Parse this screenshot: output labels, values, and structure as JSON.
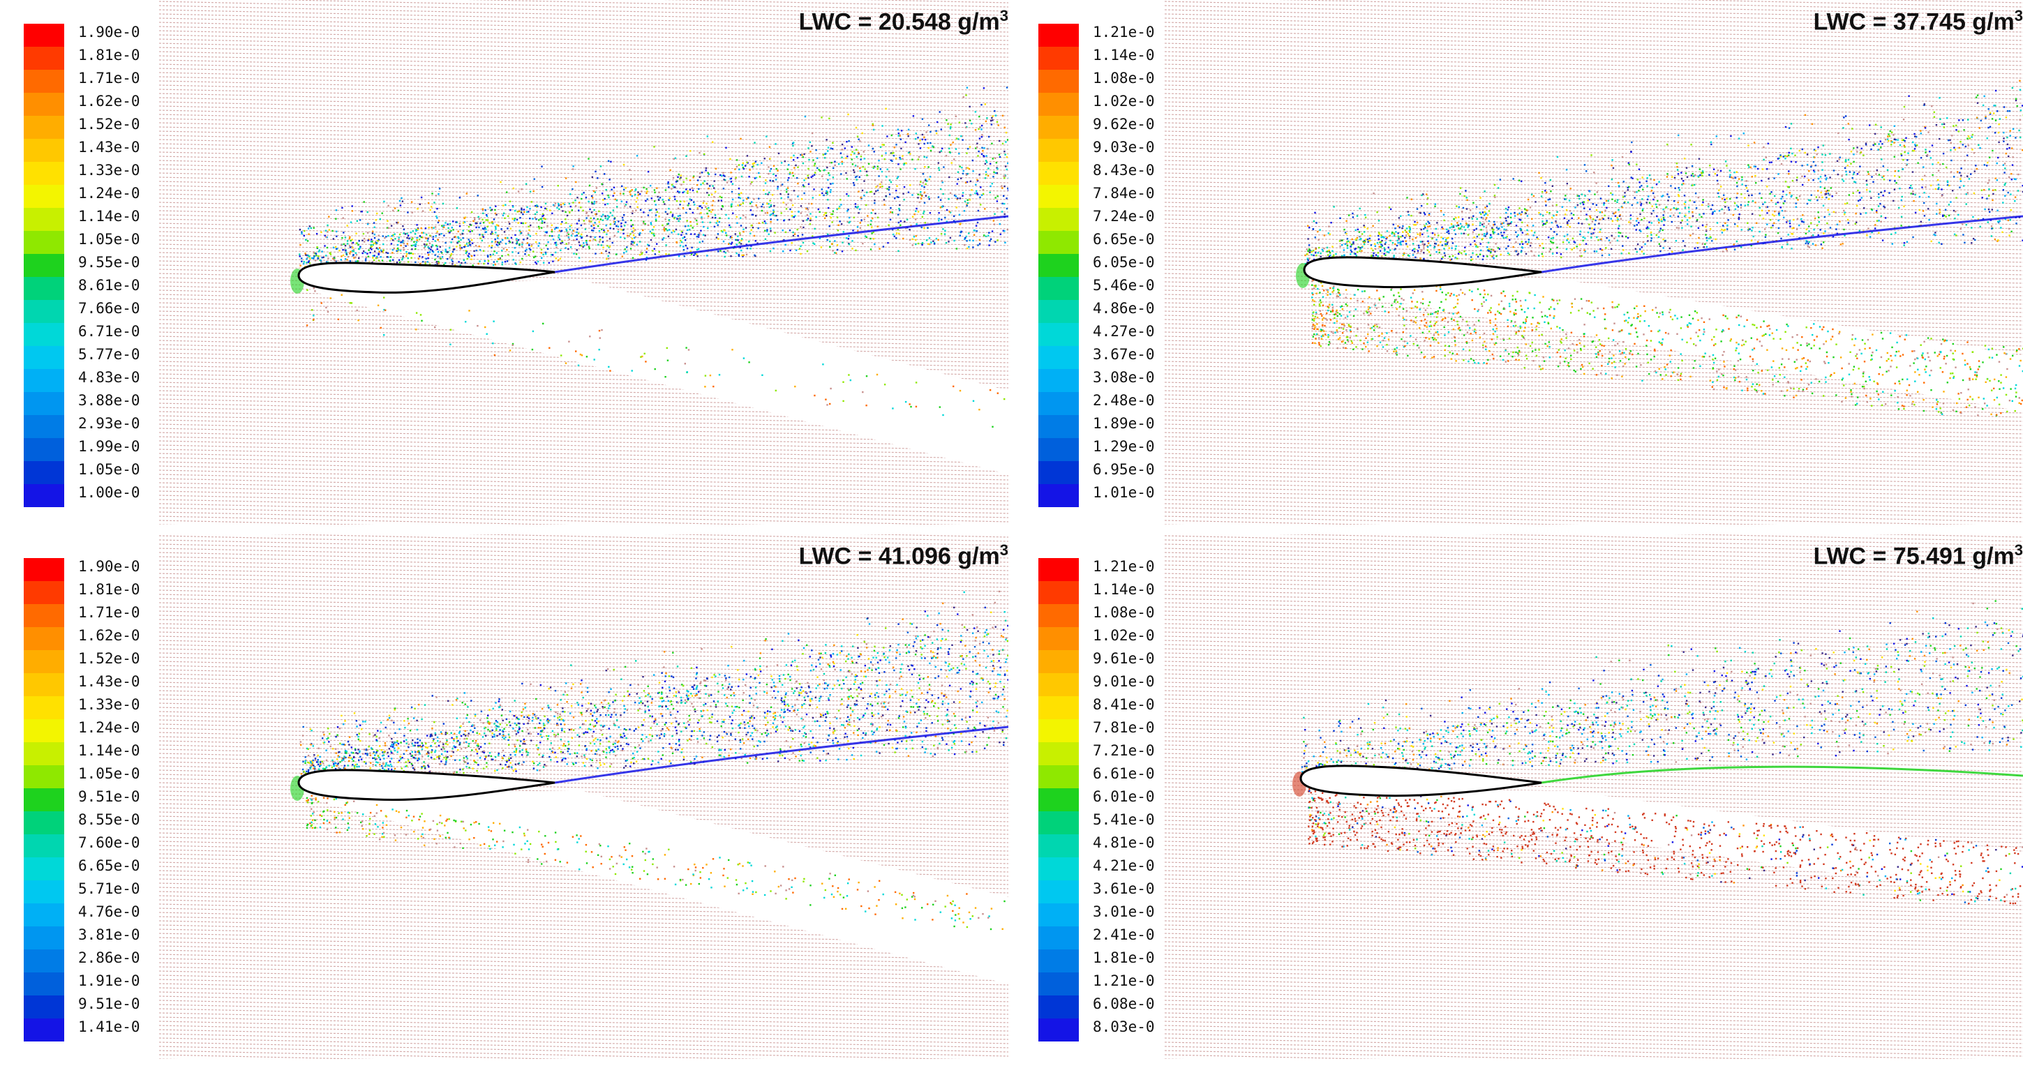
{
  "panels": [
    {
      "lwc_label": "LWC = 20.548 g/m",
      "lwc_unit_sup": "3",
      "colorbar_labels": [
        "1.90e-0",
        "1.81e-0",
        "1.71e-0",
        "1.62e-0",
        "1.52e-0",
        "1.43e-0",
        "1.33e-0",
        "1.24e-0",
        "1.14e-0",
        "1.05e-0",
        "9.55e-0",
        "8.61e-0",
        "7.66e-0",
        "6.71e-0",
        "5.77e-0",
        "4.83e-0",
        "3.88e-0",
        "2.93e-0",
        "1.99e-0",
        "1.05e-0",
        "1.00e-0"
      ]
    },
    {
      "lwc_label": "LWC = 37.745 g/m",
      "lwc_unit_sup": "3",
      "colorbar_labels": [
        "1.21e-0",
        "1.14e-0",
        "1.08e-0",
        "1.02e-0",
        "9.62e-0",
        "9.03e-0",
        "8.43e-0",
        "7.84e-0",
        "7.24e-0",
        "6.65e-0",
        "6.05e-0",
        "5.46e-0",
        "4.86e-0",
        "4.27e-0",
        "3.67e-0",
        "3.08e-0",
        "2.48e-0",
        "1.89e-0",
        "1.29e-0",
        "6.95e-0",
        "1.01e-0"
      ]
    },
    {
      "lwc_label": "LWC = 41.096 g/m",
      "lwc_unit_sup": "3",
      "colorbar_labels": [
        "1.90e-0",
        "1.81e-0",
        "1.71e-0",
        "1.62e-0",
        "1.52e-0",
        "1.43e-0",
        "1.33e-0",
        "1.24e-0",
        "1.14e-0",
        "1.05e-0",
        "9.51e-0",
        "8.55e-0",
        "7.60e-0",
        "6.65e-0",
        "5.71e-0",
        "4.76e-0",
        "3.81e-0",
        "2.86e-0",
        "1.91e-0",
        "9.51e-0",
        "1.41e-0"
      ]
    },
    {
      "lwc_label": "LWC = 75.491 g/m",
      "lwc_unit_sup": "3",
      "colorbar_labels": [
        "1.21e-0",
        "1.14e-0",
        "1.08e-0",
        "1.02e-0",
        "9.61e-0",
        "9.01e-0",
        "8.41e-0",
        "7.81e-0",
        "7.21e-0",
        "6.61e-0",
        "6.01e-0",
        "5.41e-0",
        "4.81e-0",
        "4.21e-0",
        "3.61e-0",
        "3.01e-0",
        "2.41e-0",
        "1.81e-0",
        "1.21e-0",
        "6.08e-0",
        "8.03e-0"
      ]
    }
  ],
  "colormap": [
    "#ff0000",
    "#ff3a00",
    "#ff6a00",
    "#ff8f00",
    "#ffad00",
    "#ffc800",
    "#ffe100",
    "#f3f500",
    "#c8f000",
    "#8fe800",
    "#1ed21e",
    "#00d27a",
    "#00d6b0",
    "#00d8d8",
    "#00c8f0",
    "#00b0f5",
    "#0096f0",
    "#007ce6",
    "#0060dc",
    "#0036d6",
    "#1414e6"
  ],
  "background_hatch_color": "#c8908e",
  "airfoil_outline_color": "#000000"
}
